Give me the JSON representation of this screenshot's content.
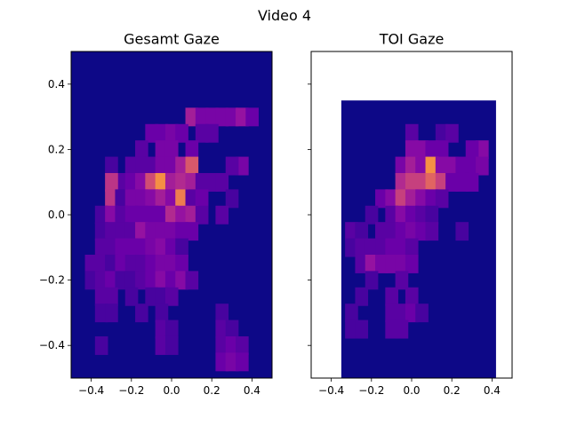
{
  "figure": {
    "suptitle": "Video 4"
  },
  "chart_data": [
    {
      "type": "heatmap",
      "title": "Gesamt Gaze",
      "xlabel": "",
      "ylabel": "",
      "xlim": [
        -0.5,
        0.5
      ],
      "ylim": [
        -0.5,
        0.5
      ],
      "xticks": [
        -0.4,
        -0.2,
        0.0,
        0.2,
        0.4
      ],
      "xtick_labels": [
        "−0.4",
        "−0.2",
        "0.0",
        "0.2",
        "0.4"
      ],
      "yticks": [
        0.4,
        0.2,
        0.0,
        -0.2,
        -0.4
      ],
      "ytick_labels": [
        "0.4",
        "0.2",
        "0.0",
        "−0.2",
        "−0.4"
      ],
      "colormap": "plasma",
      "background_color": "#0d0887",
      "grid": false,
      "bins_x": [
        -0.5,
        0.5,
        16
      ],
      "bins_y": [
        -0.5,
        0.5,
        18
      ],
      "cells": [
        [
          0.1,
          0.3,
          0.45,
          0.6
        ],
        [
          0.15,
          0.3,
          0.3,
          0.5
        ],
        [
          0.2,
          0.3,
          0.3,
          0.4
        ],
        [
          0.25,
          0.3,
          0.3,
          0.4
        ],
        [
          0.3,
          0.3,
          0.3,
          0.4
        ],
        [
          0.35,
          0.3,
          0.4,
          0.5
        ],
        [
          0.4,
          0.3,
          0.25,
          0.35
        ],
        [
          0.15,
          0.25,
          0.2,
          0.25
        ],
        [
          0.2,
          0.25,
          0.2,
          0.25
        ],
        [
          -0.1,
          0.25,
          0.25,
          0.3
        ],
        [
          -0.05,
          0.25,
          0.25,
          0.35
        ],
        [
          0.0,
          0.25,
          0.3,
          0.35
        ],
        [
          0.05,
          0.25,
          0.25,
          0.3
        ],
        [
          -0.15,
          0.2,
          0.2,
          0.3
        ],
        [
          -0.05,
          0.2,
          0.3,
          0.45
        ],
        [
          0.0,
          0.2,
          0.3,
          0.4
        ],
        [
          0.1,
          0.2,
          0.25,
          0.35
        ],
        [
          -0.3,
          0.15,
          0.15,
          0.2
        ],
        [
          -0.2,
          0.15,
          0.2,
          0.35
        ],
        [
          -0.15,
          0.15,
          0.2,
          0.35
        ],
        [
          -0.1,
          0.15,
          0.2,
          0.35
        ],
        [
          -0.05,
          0.15,
          0.3,
          0.45
        ],
        [
          0.0,
          0.15,
          0.3,
          0.5
        ],
        [
          0.05,
          0.15,
          0.45,
          0.6
        ],
        [
          0.1,
          0.15,
          0.7,
          0.8
        ],
        [
          0.35,
          0.15,
          0.3,
          0.45
        ],
        [
          0.3,
          0.15,
          0.2,
          0.3
        ],
        [
          -0.25,
          0.1,
          0.2,
          0.2
        ],
        [
          -0.3,
          0.1,
          0.55,
          0.65
        ],
        [
          -0.2,
          0.1,
          0.25,
          0.4
        ],
        [
          -0.15,
          0.1,
          0.35,
          0.5
        ],
        [
          -0.1,
          0.1,
          0.65,
          0.75
        ],
        [
          -0.05,
          0.1,
          0.9,
          0.95
        ],
        [
          0.0,
          0.1,
          0.45,
          0.6
        ],
        [
          0.05,
          0.1,
          0.5,
          0.65
        ],
        [
          0.1,
          0.1,
          0.45,
          0.6
        ],
        [
          0.15,
          0.1,
          0.2,
          0.3
        ],
        [
          0.2,
          0.1,
          0.2,
          0.3
        ],
        [
          0.25,
          0.1,
          0.2,
          0.25
        ],
        [
          -0.3,
          0.05,
          0.55,
          0.65
        ],
        [
          -0.25,
          0.05,
          0.15,
          0.25
        ],
        [
          -0.2,
          0.05,
          0.3,
          0.45
        ],
        [
          -0.15,
          0.05,
          0.3,
          0.45
        ],
        [
          -0.1,
          0.05,
          0.35,
          0.5
        ],
        [
          -0.05,
          0.05,
          0.45,
          0.6
        ],
        [
          0.0,
          0.05,
          0.35,
          0.45
        ],
        [
          0.05,
          0.05,
          0.85,
          0.9
        ],
        [
          0.1,
          0.05,
          0.2,
          0.3
        ],
        [
          0.15,
          0.05,
          0.25,
          0.35
        ],
        [
          0.3,
          0.05,
          0.15,
          0.25
        ],
        [
          -0.35,
          0.0,
          0.15,
          0.25
        ],
        [
          -0.3,
          0.0,
          0.35,
          0.45
        ],
        [
          -0.25,
          0.0,
          0.2,
          0.3
        ],
        [
          -0.2,
          0.0,
          0.25,
          0.35
        ],
        [
          -0.15,
          0.0,
          0.25,
          0.3
        ],
        [
          -0.1,
          0.0,
          0.25,
          0.35
        ],
        [
          -0.05,
          0.0,
          0.25,
          0.35
        ],
        [
          0.0,
          0.0,
          0.5,
          0.6
        ],
        [
          0.05,
          0.0,
          0.4,
          0.55
        ],
        [
          0.1,
          0.0,
          0.45,
          0.55
        ],
        [
          0.15,
          0.0,
          0.2,
          0.25
        ],
        [
          0.25,
          0.0,
          0.2,
          0.25
        ],
        [
          -0.35,
          -0.05,
          0.15,
          0.2
        ],
        [
          -0.3,
          -0.05,
          0.2,
          0.25
        ],
        [
          -0.25,
          -0.05,
          0.2,
          0.3
        ],
        [
          -0.2,
          -0.05,
          0.2,
          0.25
        ],
        [
          -0.15,
          -0.05,
          0.4,
          0.5
        ],
        [
          -0.1,
          -0.05,
          0.3,
          0.4
        ],
        [
          -0.05,
          -0.05,
          0.3,
          0.35
        ],
        [
          0.0,
          -0.05,
          0.3,
          0.4
        ],
        [
          0.05,
          -0.05,
          0.25,
          0.35
        ],
        [
          0.1,
          -0.05,
          0.25,
          0.3
        ],
        [
          -0.35,
          -0.1,
          0.2,
          0.25
        ],
        [
          -0.3,
          -0.1,
          0.2,
          0.25
        ],
        [
          -0.25,
          -0.1,
          0.25,
          0.3
        ],
        [
          -0.2,
          -0.1,
          0.25,
          0.3
        ],
        [
          -0.15,
          -0.1,
          0.25,
          0.3
        ],
        [
          -0.1,
          -0.1,
          0.3,
          0.35
        ],
        [
          -0.05,
          -0.1,
          0.35,
          0.45
        ],
        [
          0.0,
          -0.1,
          0.25,
          0.35
        ],
        [
          0.05,
          -0.1,
          0.15,
          0.2
        ],
        [
          -0.4,
          -0.15,
          0.2,
          0.25
        ],
        [
          -0.35,
          -0.15,
          0.2,
          0.25
        ],
        [
          -0.3,
          -0.15,
          0.15,
          0.2
        ],
        [
          -0.25,
          -0.15,
          0.25,
          0.3
        ],
        [
          -0.2,
          -0.15,
          0.2,
          0.3
        ],
        [
          -0.15,
          -0.15,
          0.2,
          0.25
        ],
        [
          -0.1,
          -0.15,
          0.25,
          0.3
        ],
        [
          -0.05,
          -0.15,
          0.3,
          0.4
        ],
        [
          0.0,
          -0.15,
          0.3,
          0.4
        ],
        [
          0.05,
          -0.15,
          0.25,
          0.35
        ],
        [
          -0.4,
          -0.2,
          0.15,
          0.2
        ],
        [
          -0.35,
          -0.2,
          0.2,
          0.25
        ],
        [
          -0.3,
          -0.2,
          0.25,
          0.3
        ],
        [
          -0.25,
          -0.2,
          0.15,
          0.2
        ],
        [
          -0.2,
          -0.2,
          0.15,
          0.2
        ],
        [
          -0.15,
          -0.2,
          0.2,
          0.25
        ],
        [
          -0.1,
          -0.2,
          0.25,
          0.3
        ],
        [
          -0.05,
          -0.2,
          0.35,
          0.45
        ],
        [
          0.0,
          -0.2,
          0.25,
          0.35
        ],
        [
          0.05,
          -0.2,
          0.35,
          0.45
        ],
        [
          0.1,
          -0.2,
          0.2,
          0.25
        ],
        [
          -0.35,
          -0.25,
          0.2,
          0.25
        ],
        [
          -0.3,
          -0.25,
          0.2,
          0.25
        ],
        [
          -0.2,
          -0.25,
          0.15,
          0.2
        ],
        [
          -0.1,
          -0.25,
          0.15,
          0.2
        ],
        [
          -0.05,
          -0.25,
          0.15,
          0.2
        ],
        [
          0.0,
          -0.25,
          0.2,
          0.25
        ],
        [
          -0.35,
          -0.3,
          0.15,
          0.2
        ],
        [
          -0.3,
          -0.3,
          0.15,
          0.2
        ],
        [
          -0.15,
          -0.3,
          0.15,
          0.2
        ],
        [
          -0.05,
          -0.3,
          0.15,
          0.2
        ],
        [
          0.25,
          -0.3,
          0.15,
          0.2
        ],
        [
          -0.05,
          -0.35,
          0.2,
          0.25
        ],
        [
          0.0,
          -0.35,
          0.15,
          0.2
        ],
        [
          0.25,
          -0.35,
          0.2,
          0.25
        ],
        [
          0.3,
          -0.35,
          0.15,
          0.2
        ],
        [
          -0.05,
          -0.4,
          0.2,
          0.25
        ],
        [
          0.0,
          -0.4,
          0.15,
          0.2
        ],
        [
          0.25,
          -0.4,
          0.2,
          0.25
        ],
        [
          0.3,
          -0.4,
          0.25,
          0.3
        ],
        [
          0.35,
          -0.4,
          0.2,
          0.25
        ],
        [
          -0.35,
          -0.4,
          0.15,
          0.2
        ],
        [
          0.25,
          -0.45,
          0.25,
          0.3
        ],
        [
          0.3,
          -0.45,
          0.3,
          0.35
        ],
        [
          0.35,
          -0.45,
          0.25,
          0.3
        ]
      ]
    },
    {
      "type": "heatmap",
      "title": "TOI Gaze",
      "xlabel": "",
      "ylabel": "",
      "xlim": [
        -0.5,
        0.5
      ],
      "ylim": [
        -0.5,
        0.5
      ],
      "xticks": [
        -0.4,
        -0.2,
        0.0,
        0.2,
        0.4
      ],
      "xtick_labels": [
        "−0.4",
        "−0.2",
        "0.0",
        "0.2",
        "0.4"
      ],
      "yticks": [
        0.4,
        0.2,
        0.0,
        -0.2,
        -0.4
      ],
      "ytick_labels": [],
      "colormap": "plasma",
      "background_color": "#0d0887",
      "grid": false,
      "data_extent": {
        "x": [
          -0.35,
          0.42
        ],
        "y": [
          -0.5,
          0.35
        ]
      },
      "cells": [
        [
          0.0,
          0.25,
          0.2,
          0.25
        ],
        [
          0.15,
          0.25,
          0.15,
          0.2
        ],
        [
          0.2,
          0.25,
          0.2,
          0.25
        ],
        [
          0.35,
          0.2,
          0.35,
          0.45
        ],
        [
          0.3,
          0.2,
          0.25,
          0.35
        ],
        [
          0.0,
          0.2,
          0.35,
          0.5
        ],
        [
          0.05,
          0.2,
          0.35,
          0.45
        ],
        [
          0.1,
          0.2,
          0.25,
          0.35
        ],
        [
          0.15,
          0.2,
          0.25,
          0.3
        ],
        [
          -0.05,
          0.15,
          0.3,
          0.45
        ],
        [
          0.0,
          0.15,
          0.45,
          0.55
        ],
        [
          0.05,
          0.15,
          0.35,
          0.45
        ],
        [
          0.1,
          0.15,
          0.9,
          0.95
        ],
        [
          0.15,
          0.15,
          0.35,
          0.45
        ],
        [
          0.2,
          0.15,
          0.35,
          0.45
        ],
        [
          0.25,
          0.15,
          0.25,
          0.3
        ],
        [
          0.3,
          0.15,
          0.25,
          0.3
        ],
        [
          0.35,
          0.15,
          0.3,
          0.35
        ],
        [
          -0.05,
          0.1,
          0.5,
          0.6
        ],
        [
          0.0,
          0.1,
          0.6,
          0.7
        ],
        [
          0.05,
          0.1,
          0.6,
          0.7
        ],
        [
          0.1,
          0.1,
          0.75,
          0.8
        ],
        [
          0.15,
          0.1,
          0.6,
          0.7
        ],
        [
          0.2,
          0.1,
          0.25,
          0.3
        ],
        [
          0.25,
          0.1,
          0.25,
          0.3
        ],
        [
          0.3,
          0.1,
          0.25,
          0.3
        ],
        [
          -0.15,
          0.05,
          0.25,
          0.3
        ],
        [
          -0.1,
          0.05,
          0.35,
          0.45
        ],
        [
          -0.05,
          0.05,
          0.6,
          0.7
        ],
        [
          0.0,
          0.05,
          0.45,
          0.55
        ],
        [
          0.05,
          0.05,
          0.35,
          0.4
        ],
        [
          0.1,
          0.05,
          0.25,
          0.3
        ],
        [
          0.15,
          0.05,
          0.2,
          0.25
        ],
        [
          -0.2,
          0.0,
          0.15,
          0.2
        ],
        [
          -0.1,
          0.0,
          0.2,
          0.25
        ],
        [
          -0.05,
          0.0,
          0.35,
          0.45
        ],
        [
          0.0,
          0.0,
          0.25,
          0.3
        ],
        [
          0.05,
          0.0,
          0.2,
          0.25
        ],
        [
          0.1,
          0.0,
          0.15,
          0.2
        ],
        [
          -0.3,
          -0.05,
          0.2,
          0.25
        ],
        [
          -0.25,
          -0.05,
          0.15,
          0.2
        ],
        [
          -0.15,
          -0.05,
          0.2,
          0.25
        ],
        [
          -0.1,
          -0.05,
          0.2,
          0.25
        ],
        [
          -0.05,
          -0.05,
          0.25,
          0.3
        ],
        [
          0.0,
          -0.05,
          0.3,
          0.35
        ],
        [
          0.05,
          -0.05,
          0.25,
          0.3
        ],
        [
          0.1,
          -0.05,
          0.2,
          0.25
        ],
        [
          0.25,
          -0.05,
          0.15,
          0.2
        ],
        [
          -0.3,
          -0.1,
          0.15,
          0.2
        ],
        [
          -0.25,
          -0.1,
          0.2,
          0.25
        ],
        [
          -0.2,
          -0.1,
          0.2,
          0.25
        ],
        [
          -0.15,
          -0.1,
          0.2,
          0.25
        ],
        [
          -0.1,
          -0.1,
          0.25,
          0.3
        ],
        [
          -0.05,
          -0.1,
          0.25,
          0.3
        ],
        [
          0.0,
          -0.1,
          0.2,
          0.25
        ],
        [
          -0.25,
          -0.15,
          0.2,
          0.25
        ],
        [
          -0.2,
          -0.15,
          0.4,
          0.5
        ],
        [
          -0.15,
          -0.15,
          0.3,
          0.35
        ],
        [
          -0.1,
          -0.15,
          0.3,
          0.35
        ],
        [
          -0.05,
          -0.15,
          0.3,
          0.35
        ],
        [
          0.0,
          -0.15,
          0.25,
          0.3
        ],
        [
          -0.2,
          -0.2,
          0.15,
          0.2
        ],
        [
          -0.05,
          -0.2,
          0.2,
          0.25
        ],
        [
          -0.25,
          -0.25,
          0.15,
          0.2
        ],
        [
          -0.1,
          -0.25,
          0.2,
          0.25
        ],
        [
          0.0,
          -0.25,
          0.2,
          0.25
        ],
        [
          -0.3,
          -0.3,
          0.15,
          0.2
        ],
        [
          -0.1,
          -0.3,
          0.2,
          0.25
        ],
        [
          -0.05,
          -0.3,
          0.2,
          0.25
        ],
        [
          0.0,
          -0.3,
          0.25,
          0.3
        ],
        [
          0.05,
          -0.3,
          0.15,
          0.2
        ],
        [
          -0.3,
          -0.35,
          0.15,
          0.2
        ],
        [
          -0.1,
          -0.35,
          0.2,
          0.25
        ],
        [
          -0.05,
          -0.35,
          0.2,
          0.25
        ],
        [
          -0.25,
          -0.35,
          0.15,
          0.2
        ]
      ]
    }
  ]
}
